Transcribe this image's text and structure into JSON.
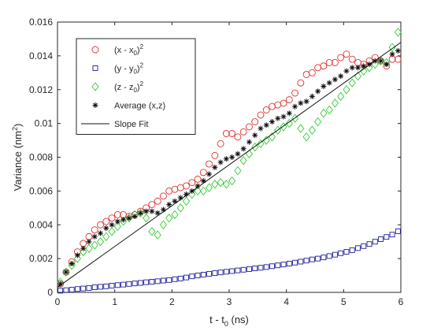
{
  "chart_data": {
    "type": "scatter",
    "xlabel": "t - t",
    "xlabel_sub": "0",
    "xlabel_unit": " (ns)",
    "ylabel": "Variance (nm",
    "ylabel_sup": "2",
    "ylabel_end": ")",
    "xlim": [
      0,
      6
    ],
    "ylim": [
      0,
      0.016
    ],
    "xticks": [
      0,
      1,
      2,
      3,
      4,
      5,
      6
    ],
    "xtick_labels": [
      "0",
      "1",
      "2",
      "3",
      "4",
      "5",
      "6"
    ],
    "yticks": [
      0,
      0.002,
      0.004,
      0.006,
      0.008,
      0.01,
      0.012,
      0.014,
      0.016
    ],
    "ytick_labels": [
      "0",
      "0.002",
      "0.004",
      "0.006",
      "0.008",
      "0.01",
      "0.012",
      "0.014",
      "0.016"
    ],
    "grid": false,
    "legend_position": "top-left",
    "series": [
      {
        "name": "(x - x",
        "name_sub": "0",
        "name_end": ")",
        "name_sup": "2",
        "marker": "circle",
        "color": "#e03030",
        "x": [
          0.05,
          0.15,
          0.25,
          0.35,
          0.45,
          0.55,
          0.65,
          0.75,
          0.85,
          0.95,
          1.05,
          1.15,
          1.25,
          1.35,
          1.45,
          1.55,
          1.65,
          1.75,
          1.85,
          1.95,
          2.05,
          2.15,
          2.25,
          2.35,
          2.45,
          2.55,
          2.65,
          2.75,
          2.85,
          2.95,
          3.05,
          3.15,
          3.25,
          3.35,
          3.45,
          3.55,
          3.65,
          3.75,
          3.85,
          3.95,
          4.05,
          4.15,
          4.25,
          4.35,
          4.45,
          4.55,
          4.65,
          4.75,
          4.85,
          4.95,
          5.05,
          5.15,
          5.25,
          5.35,
          5.45,
          5.55,
          5.65,
          5.75,
          5.85,
          5.95
        ],
        "y": [
          0.0005,
          0.0012,
          0.0018,
          0.0024,
          0.0029,
          0.0033,
          0.0037,
          0.004,
          0.0042,
          0.0044,
          0.0046,
          0.0046,
          0.0045,
          0.0046,
          0.0048,
          0.005,
          0.0052,
          0.0054,
          0.0057,
          0.006,
          0.0061,
          0.0062,
          0.0063,
          0.0065,
          0.0067,
          0.0071,
          0.0076,
          0.0081,
          0.0088,
          0.0094,
          0.0094,
          0.0092,
          0.0095,
          0.0098,
          0.0101,
          0.0105,
          0.0108,
          0.011,
          0.0111,
          0.0112,
          0.0114,
          0.0118,
          0.0124,
          0.0129,
          0.013,
          0.0133,
          0.0134,
          0.0136,
          0.0136,
          0.0139,
          0.0141,
          0.0138,
          0.0136,
          0.0135,
          0.0137,
          0.0139,
          0.0137,
          0.0134,
          0.0138,
          0.0138
        ]
      },
      {
        "name": "(y - y",
        "name_sub": "0",
        "name_end": ")",
        "name_sup": "2",
        "marker": "square",
        "color": "#1c1c9c",
        "x": [
          0.05,
          0.15,
          0.25,
          0.35,
          0.45,
          0.55,
          0.65,
          0.75,
          0.85,
          0.95,
          1.05,
          1.15,
          1.25,
          1.35,
          1.45,
          1.55,
          1.65,
          1.75,
          1.85,
          1.95,
          2.05,
          2.15,
          2.25,
          2.35,
          2.45,
          2.55,
          2.65,
          2.75,
          2.85,
          2.95,
          3.05,
          3.15,
          3.25,
          3.35,
          3.45,
          3.55,
          3.65,
          3.75,
          3.85,
          3.95,
          4.05,
          4.15,
          4.25,
          4.35,
          4.45,
          4.55,
          4.65,
          4.75,
          4.85,
          4.95,
          5.05,
          5.15,
          5.25,
          5.35,
          5.45,
          5.55,
          5.65,
          5.75,
          5.85,
          5.95
        ],
        "y": [
          0.0001,
          0.00013,
          0.00016,
          0.0002,
          0.00023,
          0.00026,
          0.0003,
          0.00033,
          0.00036,
          0.0004,
          0.00043,
          0.00046,
          0.0005,
          0.00053,
          0.00056,
          0.0006,
          0.00063,
          0.00066,
          0.0007,
          0.00073,
          0.00078,
          0.00082,
          0.00088,
          0.00095,
          0.001,
          0.00105,
          0.0011,
          0.00114,
          0.00118,
          0.00122,
          0.00126,
          0.0013,
          0.00134,
          0.00138,
          0.00142,
          0.00146,
          0.0015,
          0.00155,
          0.0016,
          0.00165,
          0.0017,
          0.00176,
          0.00182,
          0.00188,
          0.00195,
          0.002,
          0.00207,
          0.00215,
          0.00223,
          0.00232,
          0.0024,
          0.0025,
          0.00262,
          0.00274,
          0.00286,
          0.003,
          0.00315,
          0.00328,
          0.00342,
          0.00362
        ]
      },
      {
        "name": "(z - z",
        "name_sub": "0",
        "name_end": ")",
        "name_sup": "2",
        "marker": "diamond",
        "color": "#33cc33",
        "x": [
          0.05,
          0.15,
          0.25,
          0.35,
          0.45,
          0.55,
          0.65,
          0.75,
          0.85,
          0.95,
          1.05,
          1.15,
          1.25,
          1.35,
          1.45,
          1.55,
          1.65,
          1.75,
          1.85,
          1.95,
          2.05,
          2.15,
          2.25,
          2.35,
          2.45,
          2.55,
          2.65,
          2.75,
          2.85,
          2.95,
          3.05,
          3.15,
          3.25,
          3.35,
          3.45,
          3.55,
          3.65,
          3.75,
          3.85,
          3.95,
          4.05,
          4.15,
          4.25,
          4.35,
          4.45,
          4.55,
          4.65,
          4.75,
          4.85,
          4.95,
          5.05,
          5.15,
          5.25,
          5.35,
          5.45,
          5.55,
          5.65,
          5.75,
          5.85,
          5.95
        ],
        "y": [
          0.0006,
          0.0012,
          0.0016,
          0.002,
          0.0024,
          0.0026,
          0.0028,
          0.003,
          0.0033,
          0.0036,
          0.0039,
          0.0042,
          0.0044,
          0.0046,
          0.0047,
          0.0044,
          0.0036,
          0.0034,
          0.004,
          0.0044,
          0.0046,
          0.005,
          0.0054,
          0.0058,
          0.006,
          0.006,
          0.0062,
          0.0064,
          0.0065,
          0.0064,
          0.0066,
          0.0072,
          0.0078,
          0.0082,
          0.0086,
          0.0088,
          0.009,
          0.0092,
          0.0096,
          0.0098,
          0.01,
          0.0103,
          0.0097,
          0.0092,
          0.0096,
          0.0101,
          0.0106,
          0.0108,
          0.0112,
          0.0116,
          0.012,
          0.0124,
          0.0128,
          0.0131,
          0.0133,
          0.0135,
          0.0137,
          0.0136,
          0.0145,
          0.0154
        ]
      },
      {
        "name": "Average (x,z)",
        "marker": "asterisk",
        "color": "#111111",
        "x": [
          0.05,
          0.15,
          0.25,
          0.35,
          0.45,
          0.55,
          0.65,
          0.75,
          0.85,
          0.95,
          1.05,
          1.15,
          1.25,
          1.35,
          1.45,
          1.55,
          1.65,
          1.75,
          1.85,
          1.95,
          2.05,
          2.15,
          2.25,
          2.35,
          2.45,
          2.55,
          2.65,
          2.75,
          2.85,
          2.95,
          3.05,
          3.15,
          3.25,
          3.35,
          3.45,
          3.55,
          3.65,
          3.75,
          3.85,
          3.95,
          4.05,
          4.15,
          4.25,
          4.35,
          4.45,
          4.55,
          4.65,
          4.75,
          4.85,
          4.95,
          5.05,
          5.15,
          5.25,
          5.35,
          5.45,
          5.55,
          5.65,
          5.75,
          5.85,
          5.95
        ],
        "y": [
          0.0005,
          0.0012,
          0.0017,
          0.0022,
          0.0026,
          0.003,
          0.0033,
          0.0035,
          0.0038,
          0.004,
          0.0042,
          0.0043,
          0.0044,
          0.0045,
          0.0047,
          0.0048,
          0.0048,
          0.0047,
          0.0049,
          0.0052,
          0.0054,
          0.0056,
          0.0058,
          0.006,
          0.0063,
          0.0066,
          0.007,
          0.0074,
          0.0077,
          0.0079,
          0.008,
          0.0082,
          0.0085,
          0.0089,
          0.0093,
          0.0097,
          0.0099,
          0.0101,
          0.0103,
          0.0104,
          0.0106,
          0.011,
          0.0112,
          0.0113,
          0.0116,
          0.0119,
          0.0122,
          0.0124,
          0.0126,
          0.0128,
          0.0131,
          0.0133,
          0.0133,
          0.0134,
          0.0135,
          0.0137,
          0.0137,
          0.0135,
          0.0141,
          0.0143
        ]
      },
      {
        "name": "Slope Fit",
        "marker": "line",
        "color": "#111111",
        "x": [
          0,
          6
        ],
        "y": [
          0.0003,
          0.0148
        ]
      }
    ]
  }
}
